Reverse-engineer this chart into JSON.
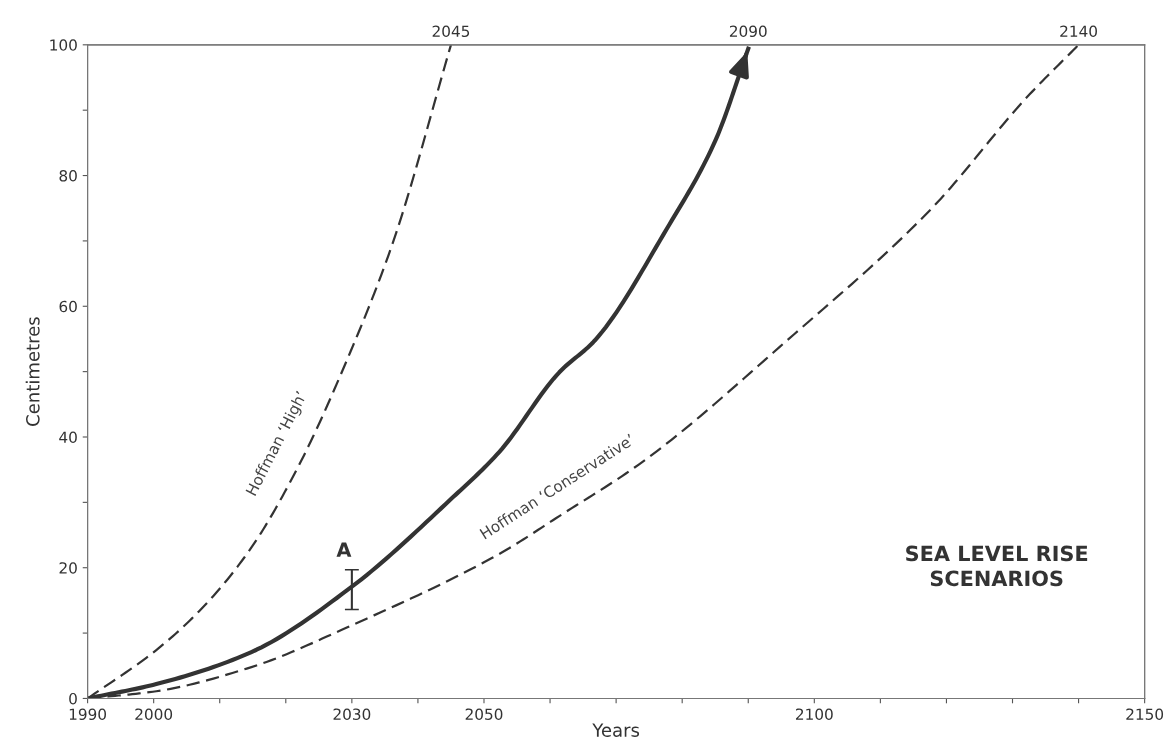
{
  "chart_data": {
    "type": "line",
    "xlabel": "Years",
    "ylabel": "Centimetres",
    "xlim": [
      1990,
      2150
    ],
    "ylim": [
      0,
      100
    ],
    "xticks": [
      1990,
      2000,
      {
        "value": 2010,
        "label": null
      },
      {
        "value": 2020,
        "label": null
      },
      2030,
      {
        "value": 2040,
        "label": null
      },
      2050,
      {
        "value": 2060,
        "label": null
      },
      {
        "value": 2070,
        "label": null
      },
      {
        "value": 2080,
        "label": null
      },
      {
        "value": 2090,
        "label": null
      },
      2100,
      {
        "value": 2110,
        "label": null
      },
      {
        "value": 2120,
        "label": null
      },
      {
        "value": 2130,
        "label": null
      },
      {
        "value": 2140,
        "label": null
      },
      2150
    ],
    "yticks": [
      0,
      {
        "value": 10,
        "label": null
      },
      20,
      {
        "value": 30,
        "label": null
      },
      40,
      {
        "value": 50,
        "label": null
      },
      60,
      {
        "value": 70,
        "label": null
      },
      80,
      {
        "value": 90,
        "label": null
      },
      100
    ],
    "x2lim": [
      1990,
      2150
    ],
    "x2ticks": [
      2045,
      2090,
      2140
    ],
    "grid": false,
    "legend": false,
    "series": [
      {
        "name": "Hoffman ‘High’",
        "color": "#333333",
        "line_style": "dashed",
        "x": [
          1990,
          2000.4,
          2007.6,
          2014.8,
          2022,
          2029.1,
          2036.3,
          2045
        ],
        "values": [
          0,
          7.4,
          14.1,
          23.1,
          35.7,
          51.4,
          70,
          100
        ]
      },
      {
        "color": "#333333",
        "line_style": "solid",
        "x": [
          1990,
          2000.4,
          2014.8,
          2030,
          2045,
          2052.3,
          2061.4,
          2066.8,
          2077.7,
          2085,
          2090
        ],
        "values": [
          0,
          2.2,
          7.1,
          17.1,
          30.5,
          37.7,
          49.9,
          54.8,
          71.9,
          85.3,
          99.4
        ],
        "errors": [
          null,
          null,
          null,
          [
            13.6,
            19.7
          ],
          null,
          null,
          null,
          null,
          null,
          null,
          null
        ]
      },
      {
        "name": "Hoffman ‘Conservative’",
        "color": "#333333",
        "line_style": "dashed",
        "x": [
          1990,
          2000.4,
          2014.8,
          2030,
          2052.3,
          2061.4,
          2074,
          2095.9,
          2117.7,
          2132.2,
          2140
        ],
        "values": [
          0,
          1.1,
          4.8,
          11.2,
          22.1,
          27.9,
          36.2,
          54.8,
          74.9,
          92,
          100
        ]
      }
    ],
    "annotations": [
      "SEA LEVEL RISE\nSCENARIOS",
      "A"
    ]
  }
}
